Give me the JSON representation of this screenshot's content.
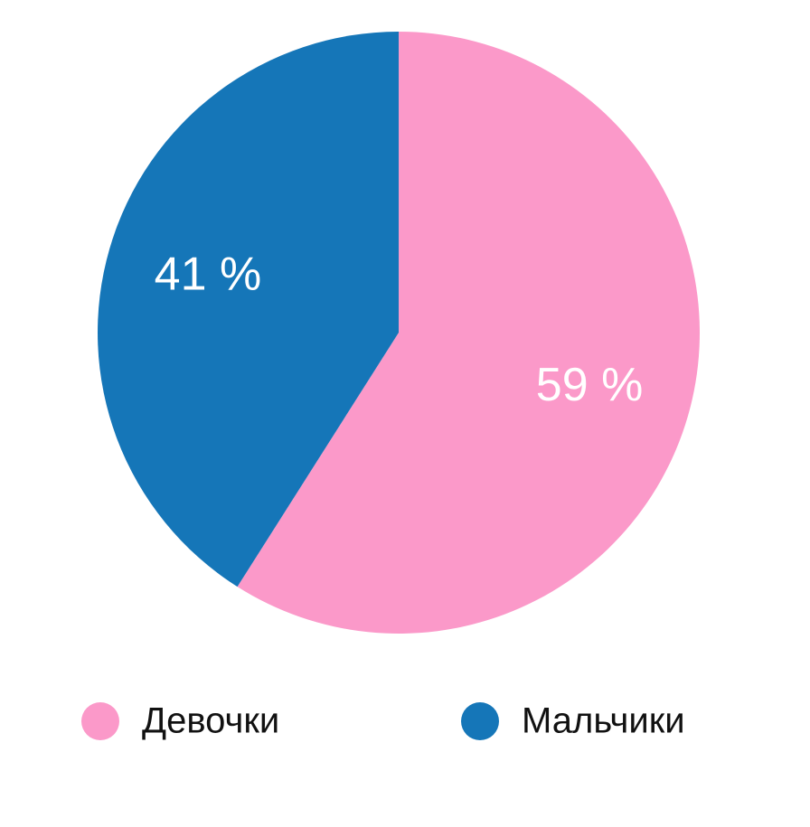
{
  "chart_data": {
    "type": "pie",
    "categories": [
      "Девочки",
      "Мальчики"
    ],
    "values": [
      59,
      41
    ],
    "value_labels": [
      "59 %",
      "41 %"
    ],
    "colors": [
      "#fb99c9",
      "#1576b8"
    ],
    "legend": "bottom"
  }
}
